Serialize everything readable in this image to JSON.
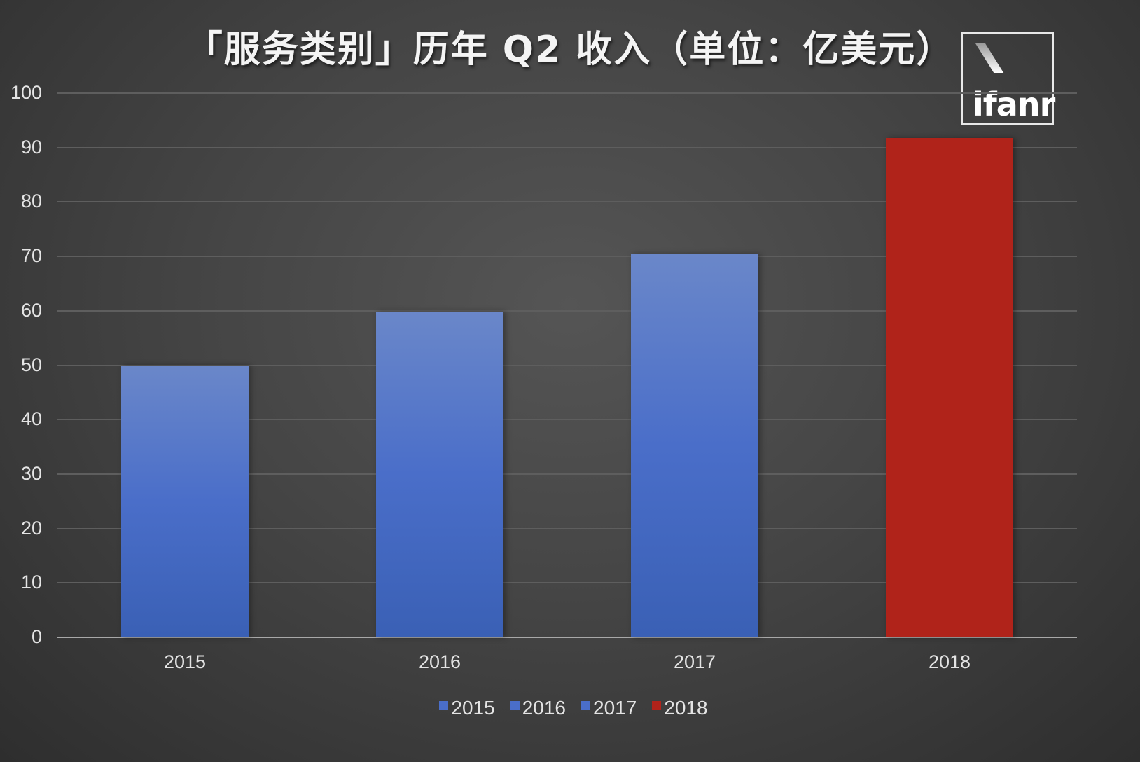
{
  "title": "「服务类别」历年 Q2 收入（单位：亿美元）",
  "logo": {
    "text": "ifanr"
  },
  "chart_data": {
    "type": "bar",
    "title": "「服务类别」历年 Q2 收入（单位：亿美元）",
    "categories": [
      "2015",
      "2016",
      "2017",
      "2018"
    ],
    "values": [
      50.0,
      59.8,
      70.4,
      91.7
    ],
    "colors": [
      "#4a6ec9",
      "#4a6ec9",
      "#4a6ec9",
      "#b0231a"
    ],
    "xlabel": "",
    "ylabel": "",
    "ylim": [
      0,
      100
    ],
    "yticks": [
      "0",
      "10",
      "20",
      "30",
      "40",
      "50",
      "60",
      "70",
      "80",
      "90",
      "100"
    ],
    "grid": true,
    "legend": {
      "position": "bottom",
      "entries": [
        {
          "label": "2015",
          "color": "#4a6ec9"
        },
        {
          "label": "2016",
          "color": "#4a6ec9"
        },
        {
          "label": "2017",
          "color": "#4a6ec9"
        },
        {
          "label": "2018",
          "color": "#b0231a"
        }
      ]
    }
  }
}
